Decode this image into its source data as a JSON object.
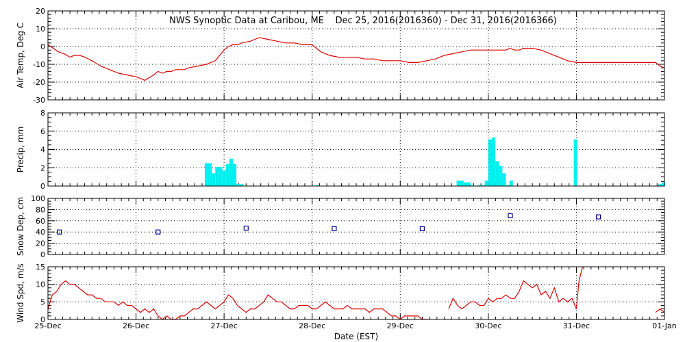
{
  "chart_data": {
    "type": "multi-panel",
    "title": "NWS Synoptic Data at Caribou, ME    Dec 25, 2016(2016360) - Dec 31, 2016(2016366)",
    "xlabel": "Date (EST)",
    "x_range_days": [
      0,
      7
    ],
    "x_ticks": [
      {
        "day": 0,
        "label": "25-Dec"
      },
      {
        "day": 1,
        "label": "26-Dec"
      },
      {
        "day": 2,
        "label": "27-Dec"
      },
      {
        "day": 3,
        "label": "28-Dec"
      },
      {
        "day": 4,
        "label": "29-Dec"
      },
      {
        "day": 5,
        "label": "30-Dec"
      },
      {
        "day": 6,
        "label": "31-Dec"
      },
      {
        "day": 7,
        "label": "01-Jan"
      }
    ],
    "grid": true,
    "colors": {
      "temp": "#e00000",
      "precip": "#00f0f0",
      "snow": "#000090",
      "wind": "#e00000"
    },
    "panels": [
      {
        "id": "temp",
        "type": "line",
        "ylabel": "Air Temp, Deg C",
        "ylim": [
          -30,
          20
        ],
        "yticks": [
          20,
          10,
          0,
          -10,
          -20,
          -30
        ],
        "series": [
          {
            "x": [
              0,
              0.06,
              0.12,
              0.18,
              0.25,
              0.3,
              0.36,
              0.42,
              0.5,
              0.6,
              0.7,
              0.8,
              0.9,
              1.0,
              1.1,
              1.2,
              1.25,
              1.3,
              1.35,
              1.4,
              1.45,
              1.5,
              1.55,
              1.6,
              1.7,
              1.8,
              1.9,
              1.95,
              2.0,
              2.05,
              2.1,
              2.15,
              2.2,
              2.3,
              2.4,
              2.5,
              2.6,
              2.7,
              2.8,
              2.9,
              3.0,
              3.05,
              3.1,
              3.2,
              3.3,
              3.4,
              3.5,
              3.6,
              3.7,
              3.8,
              3.9,
              4.0,
              4.1,
              4.2,
              4.3,
              4.4,
              4.5,
              4.6,
              4.7,
              4.8,
              4.9,
              5.0,
              5.1,
              5.2,
              5.25,
              5.3,
              5.35,
              5.4,
              5.5,
              5.6,
              5.7,
              5.8,
              5.9,
              6.0,
              6.1,
              6.2,
              6.3,
              6.4,
              6.5,
              6.6,
              6.7,
              6.8,
              6.9,
              6.95,
              7.0
            ],
            "y": [
              1,
              -1,
              -3,
              -4,
              -6,
              -5,
              -5,
              -6,
              -8,
              -11,
              -13,
              -15,
              -16,
              -17,
              -19,
              -16,
              -14,
              -15,
              -14,
              -14,
              -13,
              -13,
              -13,
              -12,
              -11,
              -10,
              -8,
              -5,
              -2,
              0,
              1,
              1,
              2,
              3,
              5,
              4,
              3,
              2,
              2,
              1,
              1,
              -1,
              -3,
              -5,
              -6,
              -6,
              -6,
              -7,
              -7,
              -8,
              -8,
              -8,
              -9,
              -9,
              -8,
              -7,
              -5,
              -4,
              -3,
              -2,
              -2,
              -2,
              -2,
              -2,
              -1,
              -2,
              -2,
              -1,
              -1,
              -2,
              -4,
              -6,
              -8,
              -9,
              -9,
              -9,
              -9,
              -9,
              -9,
              -9,
              -9,
              -9,
              -9,
              -11,
              -12
            ]
          }
        ]
      },
      {
        "id": "precip",
        "type": "bar",
        "ylabel": "Precip, mm",
        "ylim": [
          0,
          8
        ],
        "yticks": [
          8,
          6,
          4,
          2,
          0
        ],
        "bar_width_days": 0.04,
        "bars": [
          {
            "x": 1.78,
            "v": 2.5
          },
          {
            "x": 1.82,
            "v": 2.5
          },
          {
            "x": 1.86,
            "v": 1.4
          },
          {
            "x": 1.9,
            "v": 2.1
          },
          {
            "x": 1.94,
            "v": 2.1
          },
          {
            "x": 1.98,
            "v": 1.7
          },
          {
            "x": 2.02,
            "v": 2.4
          },
          {
            "x": 2.06,
            "v": 3.0
          },
          {
            "x": 2.1,
            "v": 2.4
          },
          {
            "x": 2.14,
            "v": 0.2
          },
          {
            "x": 2.18,
            "v": 0.2
          },
          {
            "x": 3.04,
            "v": 0.1
          },
          {
            "x": 4.64,
            "v": 0.6
          },
          {
            "x": 4.68,
            "v": 0.6
          },
          {
            "x": 4.72,
            "v": 0.4
          },
          {
            "x": 4.76,
            "v": 0.4
          },
          {
            "x": 4.8,
            "v": 0.1
          },
          {
            "x": 4.88,
            "v": 0.1
          },
          {
            "x": 4.92,
            "v": 0.1
          },
          {
            "x": 4.96,
            "v": 0.6
          },
          {
            "x": 5.0,
            "v": 5.1
          },
          {
            "x": 5.04,
            "v": 5.3
          },
          {
            "x": 5.08,
            "v": 2.7
          },
          {
            "x": 5.12,
            "v": 2.2
          },
          {
            "x": 5.16,
            "v": 1.4
          },
          {
            "x": 5.2,
            "v": 0.1
          },
          {
            "x": 5.24,
            "v": 0.6
          },
          {
            "x": 5.97,
            "v": 5.1
          },
          {
            "x": 6.93,
            "v": 0.2
          },
          {
            "x": 6.97,
            "v": 0.4
          }
        ]
      },
      {
        "id": "snow",
        "type": "scatter",
        "ylabel": "Snow Dep, cm",
        "ylim": [
          0,
          100
        ],
        "yticks": [
          100,
          80,
          60,
          40,
          20,
          0
        ],
        "points": [
          {
            "x": 0.13,
            "y": 40
          },
          {
            "x": 1.25,
            "y": 40
          },
          {
            "x": 2.25,
            "y": 47
          },
          {
            "x": 3.25,
            "y": 46
          },
          {
            "x": 4.25,
            "y": 46
          },
          {
            "x": 5.25,
            "y": 69
          },
          {
            "x": 6.25,
            "y": 67
          }
        ]
      },
      {
        "id": "wind",
        "type": "line",
        "ylabel": "Wind Spd, m/s",
        "ylim": [
          0,
          15
        ],
        "yticks": [
          15,
          10,
          5,
          0
        ],
        "segments": [
          {
            "x": [
              0,
              0.05,
              0.1,
              0.15,
              0.2,
              0.25,
              0.3,
              0.35,
              0.4,
              0.45,
              0.5,
              0.55,
              0.6,
              0.65,
              0.7,
              0.75,
              0.8,
              0.85,
              0.9,
              0.95,
              1.0,
              1.05,
              1.1,
              1.15,
              1.2,
              1.25,
              1.3,
              1.35,
              1.4,
              1.45,
              1.5,
              1.55,
              1.6,
              1.65,
              1.7,
              1.75,
              1.8,
              1.85,
              1.9,
              1.95,
              2.0,
              2.05,
              2.1,
              2.15,
              2.2,
              2.25,
              2.3,
              2.35,
              2.4,
              2.45,
              2.5,
              2.55,
              2.6,
              2.65,
              2.7,
              2.75,
              2.8,
              2.85,
              2.9,
              2.95,
              3.0,
              3.05,
              3.1,
              3.15,
              3.2,
              3.25,
              3.3,
              3.35,
              3.4,
              3.45,
              3.5,
              3.55,
              3.6,
              3.65,
              3.7,
              3.75,
              3.8,
              3.85,
              3.9,
              3.95,
              4.0,
              4.05,
              4.1,
              4.15,
              4.2,
              4.25,
              4.3
            ],
            "y": [
              3,
              7,
              8,
              10,
              11,
              10,
              10,
              9,
              8,
              7,
              7,
              6,
              6,
              5,
              5,
              5,
              4,
              5,
              4,
              4,
              3,
              2,
              3,
              2,
              3,
              1,
              0,
              1,
              0,
              0,
              1,
              1,
              2,
              3,
              3,
              4,
              5,
              4,
              3,
              4,
              5,
              7,
              6,
              4,
              3,
              2,
              3,
              3,
              4,
              5,
              7,
              6,
              5,
              5,
              4,
              3,
              3,
              4,
              4,
              4,
              3,
              3,
              4,
              5,
              4,
              3,
              3,
              3,
              4,
              3,
              3,
              3,
              3,
              2,
              3,
              3,
              3,
              2,
              1,
              1,
              0,
              1,
              1,
              1,
              1,
              0,
              0
            ]
          },
          {
            "x": [
              4.55,
              4.6,
              4.65,
              4.7,
              4.75,
              4.8,
              4.85,
              4.9,
              4.95,
              5.0,
              5.05,
              5.1,
              5.15,
              5.2,
              5.25,
              5.3,
              5.35,
              5.4,
              5.45,
              5.5,
              5.55,
              5.6,
              5.65,
              5.7,
              5.75,
              5.8,
              5.85,
              5.9,
              5.95,
              6.0,
              6.03,
              6.07
            ],
            "y": [
              3,
              6,
              4,
              3,
              4,
              5,
              5,
              4,
              4,
              6,
              5,
              6,
              6,
              7,
              6,
              6,
              8,
              11,
              10,
              9,
              10,
              7,
              8,
              6,
              9,
              5,
              6,
              5,
              6,
              3,
              11,
              16
            ]
          },
          {
            "x": [
              6.9,
              6.95,
              7.0
            ],
            "y": [
              2,
              3,
              2
            ]
          }
        ]
      }
    ]
  }
}
